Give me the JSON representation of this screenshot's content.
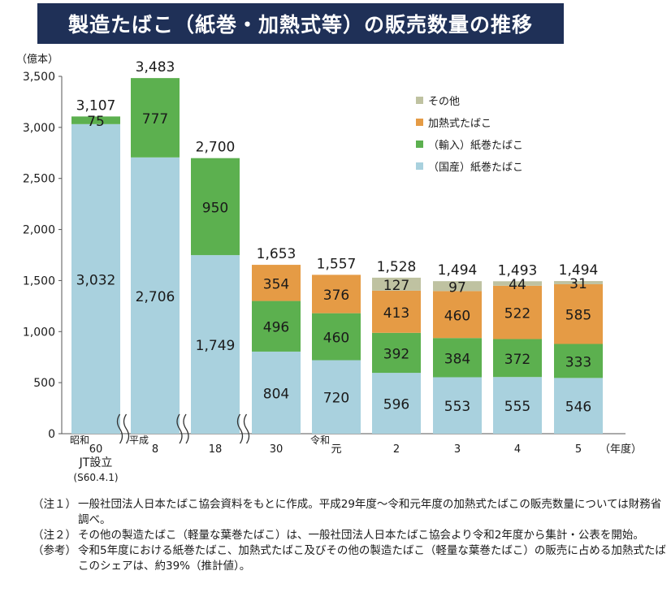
{
  "title": "製造たばこ（紙巻・加熱式等）の販売数量の推移",
  "chart_data": {
    "type": "bar",
    "stacked": true,
    "ylabel": "（億本）",
    "xlabel": "（年度）",
    "ylim": [
      0,
      3500
    ],
    "yticks": [
      0,
      500,
      1000,
      1500,
      2000,
      2500,
      3000,
      3500
    ],
    "ytick_labels": [
      "0",
      "500",
      "1,000",
      "1,500",
      "2,000",
      "2,500",
      "3,000",
      "3,500"
    ],
    "categories": [
      "60",
      "8",
      "18",
      "30",
      "元",
      "2",
      "3",
      "4",
      "5"
    ],
    "era_labels": [
      "昭和",
      "平成",
      "",
      "",
      "令和",
      "",
      "",
      "",
      ""
    ],
    "sub_labels": [
      "JT設立",
      "(S60.4.1)"
    ],
    "series": [
      {
        "name": "（国産）紙巻たばこ",
        "color": "#a9d1de",
        "values": [
          3032,
          2706,
          1749,
          804,
          720,
          596,
          553,
          555,
          546
        ]
      },
      {
        "name": "（輸入）紙巻たばこ",
        "color": "#5cb04f",
        "values": [
          75,
          777,
          950,
          496,
          460,
          392,
          384,
          372,
          333
        ]
      },
      {
        "name": "加熱式たばこ",
        "color": "#e59b45",
        "values": [
          0,
          0,
          0,
          354,
          376,
          413,
          460,
          522,
          585
        ]
      },
      {
        "name": "その他",
        "color": "#bfc2a1",
        "values": [
          0,
          0,
          0,
          0,
          0,
          127,
          97,
          44,
          31
        ]
      }
    ],
    "segment_labels": [
      [
        "3,032",
        "75",
        "",
        ""
      ],
      [
        "2,706",
        "777",
        "",
        ""
      ],
      [
        "1,749",
        "950",
        "",
        ""
      ],
      [
        "804",
        "496",
        "354",
        ""
      ],
      [
        "720",
        "460",
        "376",
        ""
      ],
      [
        "596",
        "392",
        "413",
        "127"
      ],
      [
        "553",
        "384",
        "460",
        "97"
      ],
      [
        "555",
        "372",
        "522",
        "44"
      ],
      [
        "546",
        "333",
        "585",
        "31"
      ]
    ],
    "totals": [
      "3,107",
      "3,483",
      "2,700",
      "1,653",
      "1,557",
      "1,528",
      "1,494",
      "1,493",
      "1,494"
    ],
    "legend": [
      "その他",
      "加熱式たばこ",
      "（輸入）紙巻たばこ",
      "（国産）紙巻たばこ"
    ],
    "legend_colors": [
      "#bfc2a1",
      "#e59b45",
      "#5cb04f",
      "#a9d1de"
    ],
    "legend_position": "top-right",
    "axis_breaks_after": [
      0,
      1,
      2
    ]
  },
  "notes": [
    {
      "label": "（注１）",
      "text": "一般社団法人日本たばこ協会資料をもとに作成。平成29年度～令和元年度の加熱式たばこの販売数量については財務省調べ。"
    },
    {
      "label": "（注２）",
      "text": "その他の製造たばこ（軽量な葉巻たばこ）は、一般社団法人日本たばこ協会より令和2年度から集計・公表を開始。"
    },
    {
      "label": "（参考）",
      "text": "令和5年度における紙巻たばこ、加熱式たばこ及びその他の製造たばこ（軽量な葉巻たばこ）の販売に占める加熱式たばこのシェアは、約39%（推計値）。"
    }
  ]
}
